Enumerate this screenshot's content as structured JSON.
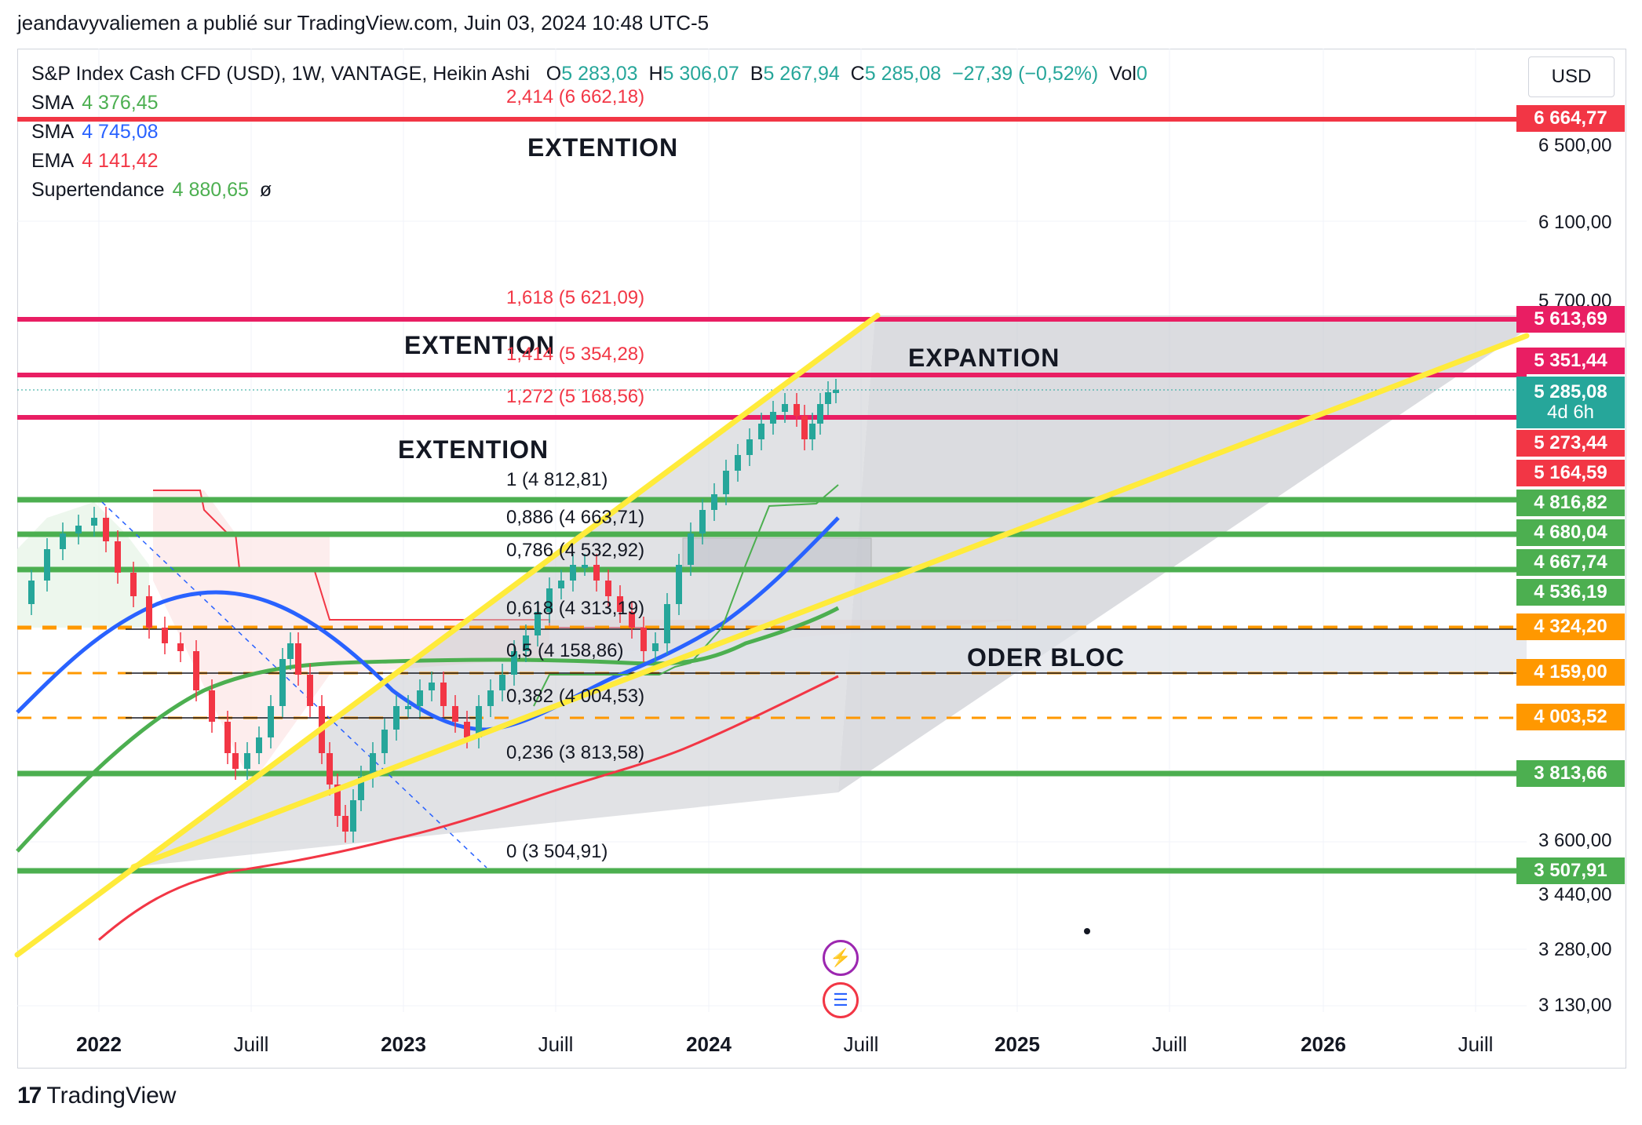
{
  "header": {
    "attribution": "jeandavyvaliemen a publié sur TradingView.com, Juin 03, 2024 10:48 UTC-5"
  },
  "legend": {
    "symbol": "S&P Index Cash CFD (USD), 1W, VANTAGE, Heikin Ashi",
    "ohlc": {
      "o_label": "O",
      "o": "5 283,03",
      "h_label": "H",
      "h": "5 306,07",
      "b_label": "B",
      "b": "5 267,94",
      "c_label": "C",
      "c": "5 285,08",
      "change": "−27,39 (−0,52%)",
      "vol_label": "Vol",
      "vol": "0"
    },
    "indicators": [
      {
        "label": "SMA",
        "value": "4 376,45",
        "color": "#4caf50"
      },
      {
        "label": "SMA",
        "value": "4 745,08",
        "color": "#2962ff"
      },
      {
        "label": "EMA",
        "value": "4 141,42",
        "color": "#f23645"
      },
      {
        "label": "Supertendance",
        "value": "4 880,65",
        "suffix": "ø",
        "color": "#4caf50"
      }
    ]
  },
  "currency_button": "USD",
  "footer": {
    "brand": "TradingView",
    "logo_glyph": "17"
  },
  "annotations": {
    "extention_top": "EXTENTION",
    "extention_mid": "EXTENTION",
    "extention_low": "EXTENTION",
    "expantion": "EXPANTION",
    "oder_bloc": "ODER BLOC"
  },
  "fib_labels": {
    "f2414": "2,414 (6 662,18)",
    "f1618": "1,618 (5 621,09)",
    "f1414": "1,414 (5 354,28)",
    "f1272": "1,272 (5 168,56)",
    "f1": "1 (4 812,81)",
    "f0886": "0,886 (4 663,71)",
    "f0786": "0,786 (4 532,92)",
    "f0618": "0,618 (4 313,19)",
    "f05": "0,5 (4 158,86)",
    "f0382": "0,382 (4 004,53)",
    "f0236": "0,236 (3 813,58)",
    "f0": "0 (3 504,91)"
  },
  "price_tags": [
    {
      "value": "6 664,77",
      "color": "#f23645"
    },
    {
      "value": "5 613,69",
      "color": "#e91e63"
    },
    {
      "value": "5 351,44",
      "color": "#e91e63"
    },
    {
      "value": "5 285,08",
      "sub": "4d 6h",
      "color": "#26a69a"
    },
    {
      "value": "5 273,44",
      "color": "#f23645"
    },
    {
      "value": "5 164,59",
      "color": "#f23645"
    },
    {
      "value": "4 816,82",
      "color": "#4caf50"
    },
    {
      "value": "4 680,04",
      "color": "#4caf50"
    },
    {
      "value": "4 667,74",
      "color": "#4caf50"
    },
    {
      "value": "4 536,19",
      "color": "#4caf50"
    },
    {
      "value": "4 324,20",
      "color": "#ff9800"
    },
    {
      "value": "4 159,00",
      "color": "#ff9800"
    },
    {
      "value": "4 003,52",
      "color": "#ff9800"
    },
    {
      "value": "3 813,66",
      "color": "#4caf50"
    },
    {
      "value": "3 507,91",
      "color": "#4caf50"
    }
  ],
  "chart_data": {
    "type": "candlestick",
    "title": "S&P Index Cash CFD (USD), 1W, VANTAGE, Heikin Ashi",
    "y_ticks": [
      "6 500,00",
      "6 100,00",
      "5 700,00",
      "3 600,00",
      "3 440,00",
      "3 280,00",
      "3 130,00"
    ],
    "x_ticks": [
      {
        "label": "2022",
        "year": true
      },
      {
        "label": "Juill",
        "year": false
      },
      {
        "label": "2023",
        "year": true
      },
      {
        "label": "Juill",
        "year": false
      },
      {
        "label": "2024",
        "year": true
      },
      {
        "label": "Juill",
        "year": false
      },
      {
        "label": "2025",
        "year": true
      },
      {
        "label": "Juill",
        "year": false
      },
      {
        "label": "2026",
        "year": true
      },
      {
        "label": "Juill",
        "year": false
      }
    ],
    "horizontal_levels": {
      "red": [
        6664.77,
        5613.69,
        5351.44,
        5164.59
      ],
      "green": [
        4816.82,
        4680.04,
        4536.19,
        3813.66,
        3507.91
      ],
      "orange_dashed": [
        4324.2,
        4159.0,
        4003.52
      ]
    },
    "colors": {
      "up": "#26a69a",
      "down": "#f23645",
      "trendline": "#ffeb3b",
      "sma_green": "#4caf50",
      "sma_blue": "#2962ff",
      "ema": "#f23645"
    }
  }
}
